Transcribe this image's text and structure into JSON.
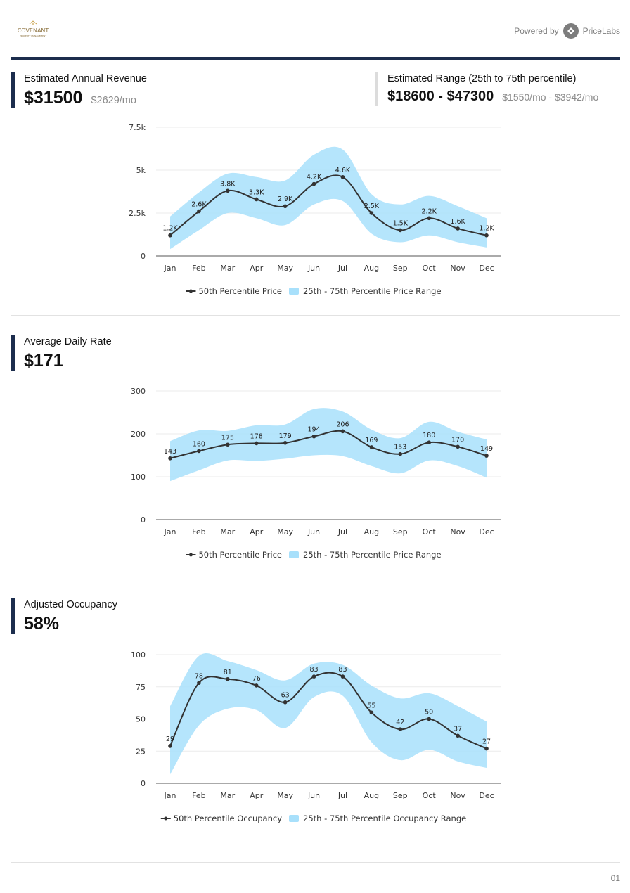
{
  "header": {
    "logo_text": "COVENANT",
    "logo_subtext": "PROPERTY MANAGEMENT",
    "powered_by": "Powered by",
    "brand": "PriceLabs"
  },
  "revenue": {
    "label": "Estimated Annual Revenue",
    "value": "$31500",
    "sub": "$2629/mo"
  },
  "range": {
    "label": "Estimated Range (25th to 75th percentile)",
    "value": "$18600 - $47300",
    "sub": "$1550/mo - $3942/mo"
  },
  "adr": {
    "label": "Average Daily Rate",
    "value": "$171"
  },
  "occupancy": {
    "label": "Adjusted Occupancy",
    "value": "58%"
  },
  "page_number": "01",
  "colors": {
    "navy": "#1c2d4d",
    "band": "#a8e0fb",
    "line": "#333333"
  },
  "chart_data": [
    {
      "type": "line",
      "categories": [
        "Jan",
        "Feb",
        "Mar",
        "Apr",
        "May",
        "Jun",
        "Jul",
        "Aug",
        "Sep",
        "Oct",
        "Nov",
        "Dec"
      ],
      "yticks": [
        "0",
        "2.5k",
        "5k",
        "7.5k"
      ],
      "ylim": [
        0,
        7500
      ],
      "series": [
        {
          "name": "50th Percentile Price",
          "values": [
            1200,
            2600,
            3800,
            3300,
            2900,
            4200,
            4600,
            2500,
            1500,
            2200,
            1600,
            1200
          ],
          "labels": [
            "1.2K",
            "2.6K",
            "3.8K",
            "3.3K",
            "2.9K",
            "4.2K",
            "4.6K",
            "2.5K",
            "1.5K",
            "2.2K",
            "1.6K",
            "1.2K"
          ]
        },
        {
          "name": "25th - 75th Percentile Price Range",
          "low": [
            400,
            1500,
            2500,
            2200,
            1800,
            3000,
            3200,
            1300,
            800,
            1200,
            800,
            500
          ],
          "high": [
            2300,
            3700,
            4800,
            4600,
            4400,
            5900,
            6200,
            3600,
            3000,
            3500,
            2900,
            2200
          ]
        }
      ],
      "legend": "bottom"
    },
    {
      "type": "line",
      "categories": [
        "Jan",
        "Feb",
        "Mar",
        "Apr",
        "May",
        "Jun",
        "Jul",
        "Aug",
        "Sep",
        "Oct",
        "Nov",
        "Dec"
      ],
      "yticks": [
        "0",
        "100",
        "200",
        "300"
      ],
      "ylim": [
        0,
        300
      ],
      "series": [
        {
          "name": "50th Percentile Price",
          "values": [
            143,
            160,
            175,
            178,
            179,
            194,
            206,
            169,
            153,
            180,
            170,
            149
          ],
          "labels": [
            "143",
            "160",
            "175",
            "178",
            "179",
            "194",
            "206",
            "169",
            "153",
            "180",
            "170",
            "149"
          ]
        },
        {
          "name": "25th - 75th Percentile Price Range",
          "low": [
            90,
            115,
            138,
            137,
            142,
            150,
            148,
            125,
            108,
            138,
            125,
            98
          ],
          "high": [
            183,
            208,
            207,
            220,
            222,
            258,
            252,
            210,
            190,
            228,
            205,
            187
          ]
        }
      ],
      "legend": "bottom"
    },
    {
      "type": "line",
      "categories": [
        "Jan",
        "Feb",
        "Mar",
        "Apr",
        "May",
        "Jun",
        "Jul",
        "Aug",
        "Sep",
        "Oct",
        "Nov",
        "Dec"
      ],
      "yticks": [
        "0",
        "25",
        "50",
        "75",
        "100"
      ],
      "ylim": [
        0,
        100
      ],
      "series": [
        {
          "name": "50th Percentile Occupancy",
          "values": [
            29,
            78,
            81,
            76,
            63,
            83,
            83,
            55,
            42,
            50,
            37,
            27
          ],
          "labels": [
            "29",
            "78",
            "81",
            "76",
            "63",
            "83",
            "83",
            "55",
            "42",
            "50",
            "37",
            "27"
          ]
        },
        {
          "name": "25th - 75th Percentile Occupancy Range",
          "low": [
            7,
            45,
            58,
            57,
            43,
            67,
            68,
            32,
            18,
            26,
            17,
            12
          ],
          "high": [
            60,
            99,
            95,
            88,
            80,
            93,
            92,
            76,
            66,
            70,
            60,
            48
          ]
        }
      ],
      "legend": "bottom"
    }
  ]
}
